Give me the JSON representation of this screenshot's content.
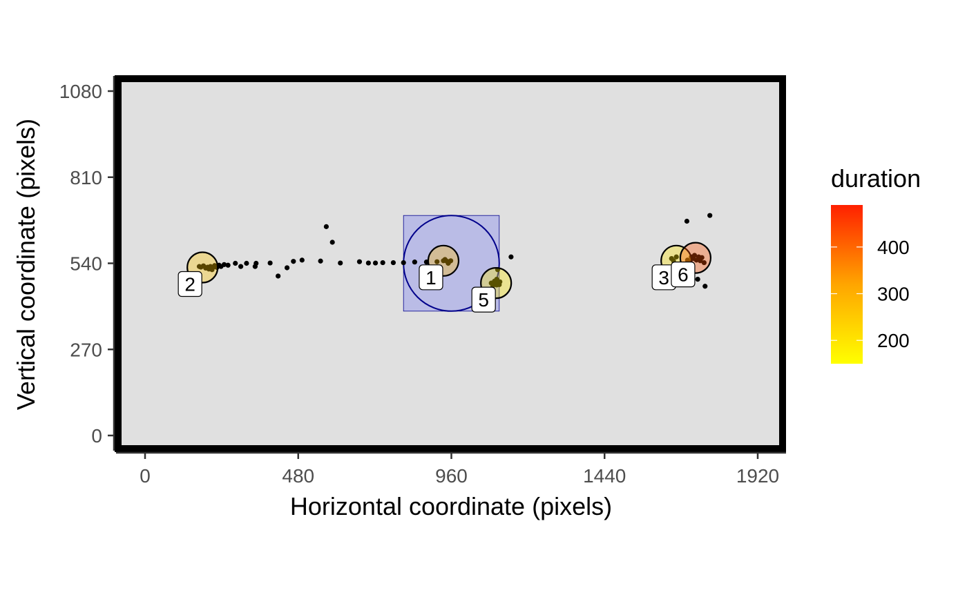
{
  "chart_data": {
    "type": "scatter",
    "xlabel": "Horizontal coordinate (pixels)",
    "ylabel": "Vertical coordinate (pixels)",
    "xlim": [
      0,
      1920
    ],
    "ylim": [
      0,
      1080
    ],
    "x_ticks": [
      0,
      480,
      960,
      1440,
      1920
    ],
    "y_ticks": [
      0,
      270,
      540,
      810,
      1080
    ],
    "grid": false,
    "legend": {
      "title": "duration",
      "placement": "right",
      "min": 150,
      "max": 490,
      "ticks": [
        200,
        300,
        400
      ],
      "colors": [
        "#ffff00",
        "#ffa500",
        "#ff2000"
      ]
    },
    "panel_color": "#e0e0e0",
    "aoi": {
      "circle": {
        "cx": 960,
        "cy": 540,
        "r": 150
      },
      "rect": {
        "x_min": 810,
        "x_max": 1110,
        "y_min": 390,
        "y_max": 690
      },
      "color": "#00008b",
      "fill": "#b3b5e6"
    },
    "fixations": [
      {
        "label": "1",
        "x": 935,
        "y": 548,
        "duration": 275
      },
      {
        "label": "2",
        "x": 180,
        "y": 527,
        "duration": 260
      },
      {
        "label": "3",
        "x": 1665,
        "y": 548,
        "duration": 200
      },
      {
        "label": "5",
        "x": 1100,
        "y": 478,
        "duration": 190
      },
      {
        "label": "6",
        "x": 1725,
        "y": 557,
        "duration": 430
      }
    ],
    "samples": [
      [
        170,
        530
      ],
      [
        175,
        528
      ],
      [
        183,
        532
      ],
      [
        190,
        525
      ],
      [
        196,
        528
      ],
      [
        200,
        522
      ],
      [
        205,
        530
      ],
      [
        210,
        520
      ],
      [
        214,
        528
      ],
      [
        218,
        533
      ],
      [
        225,
        527
      ],
      [
        232,
        534
      ],
      [
        238,
        530
      ],
      [
        248,
        536
      ],
      [
        260,
        534
      ],
      [
        283,
        540
      ],
      [
        300,
        530
      ],
      [
        318,
        540
      ],
      [
        345,
        530
      ],
      [
        348,
        540
      ],
      [
        392,
        541
      ],
      [
        417,
        500
      ],
      [
        445,
        526
      ],
      [
        465,
        546
      ],
      [
        492,
        550
      ],
      [
        550,
        547
      ],
      [
        568,
        655
      ],
      [
        587,
        606
      ],
      [
        612,
        541
      ],
      [
        672,
        545
      ],
      [
        700,
        541
      ],
      [
        722,
        541
      ],
      [
        745,
        542
      ],
      [
        778,
        542
      ],
      [
        810,
        542
      ],
      [
        845,
        544
      ],
      [
        882,
        544
      ],
      [
        915,
        545
      ],
      [
        935,
        548
      ],
      [
        940,
        552
      ],
      [
        945,
        547
      ],
      [
        950,
        540
      ],
      [
        953,
        545
      ],
      [
        958,
        548
      ],
      [
        1085,
        478
      ],
      [
        1090,
        470
      ],
      [
        1095,
        484
      ],
      [
        1098,
        476
      ],
      [
        1102,
        472
      ],
      [
        1106,
        480
      ],
      [
        1110,
        473
      ],
      [
        1112,
        482
      ],
      [
        1105,
        520
      ],
      [
        1147,
        560
      ],
      [
        1102,
        490
      ],
      [
        1650,
        555
      ],
      [
        1656,
        548
      ],
      [
        1665,
        560
      ],
      [
        1700,
        550
      ],
      [
        1708,
        545
      ],
      [
        1712,
        560
      ],
      [
        1718,
        555
      ],
      [
        1722,
        565
      ],
      [
        1728,
        550
      ],
      [
        1735,
        560
      ],
      [
        1740,
        548
      ],
      [
        1745,
        558
      ],
      [
        1752,
        542
      ],
      [
        1695,
        535
      ],
      [
        1700,
        502
      ],
      [
        1732,
        490
      ],
      [
        1755,
        468
      ],
      [
        1698,
        672
      ],
      [
        1770,
        690
      ]
    ]
  }
}
